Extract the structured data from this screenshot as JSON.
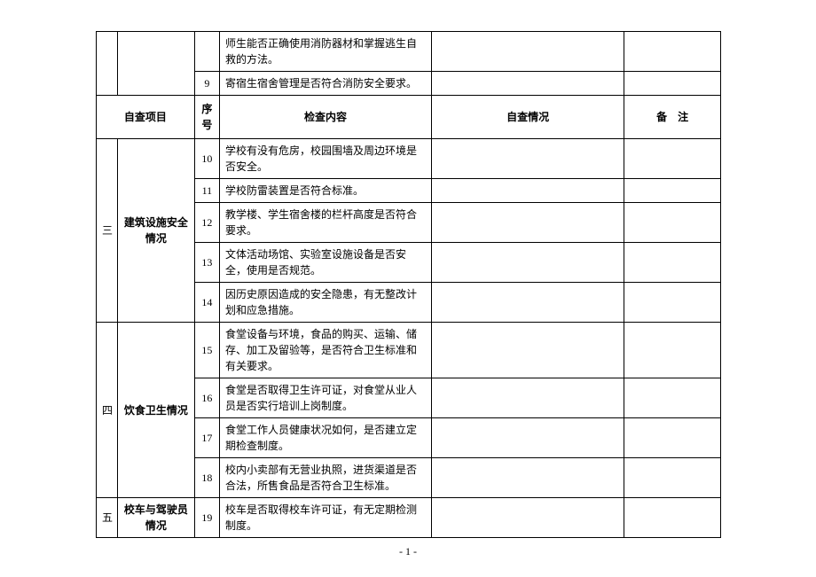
{
  "header": {
    "category": "自查项目",
    "seq": "序号",
    "content": "检查内容",
    "self": "自查情况",
    "note": "备　注"
  },
  "partial_top": {
    "row_a": "师生能否正确使用消防器材和掌握逃生自救的方法。",
    "row_b_seq": "9",
    "row_b": "寄宿生宿舍管理是否符合消防安全要求。"
  },
  "sections": [
    {
      "idx": "三",
      "category": "建筑设施安全情况",
      "rows": [
        {
          "seq": "10",
          "content": "学校有没有危房，校园围墙及周边环境是否安全。"
        },
        {
          "seq": "11",
          "content": "学校防雷装置是否符合标准。"
        },
        {
          "seq": "12",
          "content": "教学楼、学生宿舍楼的栏杆高度是否符合要求。"
        },
        {
          "seq": "13",
          "content": "文体活动场馆、实验室设施设备是否安全，使用是否规范。"
        },
        {
          "seq": "14",
          "content": "因历史原因造成的安全隐患，有无整改计划和应急措施。"
        }
      ]
    },
    {
      "idx": "四",
      "category": "饮食卫生情况",
      "rows": [
        {
          "seq": "15",
          "content": "食堂设备与环境，食品的购买、运输、储存、加工及留验等，是否符合卫生标准和有关要求。"
        },
        {
          "seq": "16",
          "content": "食堂是否取得卫生许可证，对食堂从业人员是否实行培训上岗制度。"
        },
        {
          "seq": "17",
          "content": "食堂工作人员健康状况如何，是否建立定期检查制度。"
        },
        {
          "seq": "18",
          "content": "校内小卖部有无营业执照，进货渠道是否合法，所售食品是否符合卫生标准。"
        }
      ]
    },
    {
      "idx": "五",
      "category": "校车与驾驶员情况",
      "rows": [
        {
          "seq": "19",
          "content": "校车是否取得校车许可证，有无定期检测制度。"
        }
      ]
    }
  ],
  "page_number": "- 1 -"
}
